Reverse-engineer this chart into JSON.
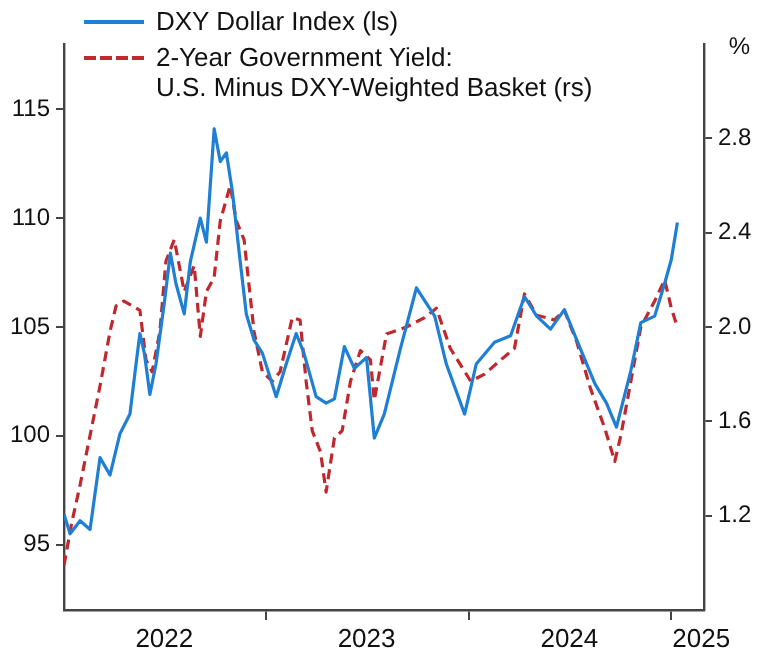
{
  "chart_data": {
    "type": "line",
    "xlim": [
      "2022-01-01",
      "2025-03-01"
    ],
    "xticks": [
      {
        "value": "2022-07-01",
        "label": "2022"
      },
      {
        "value": "2023-01-01",
        "label": null
      },
      {
        "value": "2023-07-01",
        "label": "2023"
      },
      {
        "value": "2024-01-01",
        "label": null
      },
      {
        "value": "2024-07-01",
        "label": "2024"
      },
      {
        "value": "2025-01-01",
        "label": null
      },
      {
        "value": "2025-02-24",
        "label": "2025"
      }
    ],
    "ylim": [
      92,
      118
    ],
    "yticks": [
      95,
      100,
      105,
      110,
      115
    ],
    "y2lim": [
      0.8,
      3.2
    ],
    "y2ticks": [
      1.2,
      1.6,
      {
        "value": 2,
        "label": "2.0"
      },
      2.4,
      2.8
    ],
    "y2label": "%",
    "legend": "top left",
    "grid": false,
    "marker": "none",
    "series": [
      {
        "name": "DXY Dollar Index (ls)",
        "color": "#1f7fd4",
        "line_style": "solid",
        "x": [
          "2022-01-01",
          "2022-01-12",
          "2022-01-30",
          "2022-02-17",
          "2022-03-07",
          "2022-03-25",
          "2022-04-12",
          "2022-04-30",
          "2022-05-11",
          "2022-05-18",
          "2022-05-26",
          "2022-06-05",
          "2022-06-16",
          "2022-07-01",
          "2022-07-12",
          "2022-07-22",
          "2022-08-06",
          "2022-08-17",
          "2022-09-04",
          "2022-09-15",
          "2022-09-29",
          "2022-10-10",
          "2022-10-21",
          "2022-11-01",
          "2022-11-15",
          "2022-11-26",
          "2022-12-10",
          "2022-12-25",
          "2023-01-19",
          "2023-02-06",
          "2023-02-24",
          "2023-03-10",
          "2023-04-01",
          "2023-04-19",
          "2023-05-04",
          "2023-05-22",
          "2023-06-09",
          "2023-07-01",
          "2023-07-15",
          "2023-08-02",
          "2023-08-31",
          "2023-09-29",
          "2023-11-01",
          "2023-11-22",
          "2023-12-25",
          "2024-01-15",
          "2024-02-17",
          "2024-03-17",
          "2024-04-11",
          "2024-05-03",
          "2024-05-28",
          "2024-06-22",
          "2024-07-21",
          "2024-08-16",
          "2024-09-06",
          "2024-09-24",
          "2024-10-20",
          "2024-11-07",
          "2024-12-02",
          "2024-12-20",
          "2025-01-01",
          "2025-01-12"
        ],
        "values": [
          96.4,
          95.5,
          96.1,
          95.7,
          99.0,
          98.2,
          100.1,
          101.0,
          103.3,
          104.7,
          103.8,
          101.9,
          103.3,
          106.1,
          108.4,
          107.0,
          105.6,
          108.0,
          110.0,
          108.9,
          114.1,
          112.6,
          113.0,
          111.2,
          108.0,
          105.6,
          104.4,
          103.8,
          101.8,
          103.3,
          104.7,
          103.8,
          101.8,
          101.5,
          101.7,
          104.1,
          103.1,
          103.6,
          99.9,
          101.0,
          104.0,
          106.8,
          105.5,
          103.3,
          101.0,
          103.3,
          104.3,
          104.6,
          106.4,
          105.5,
          104.9,
          105.8,
          104.0,
          102.4,
          101.5,
          100.4,
          103.0,
          105.2,
          105.5,
          107.0,
          108.1,
          109.8
        ]
      },
      {
        "name": "2-Year Government Yield:\nU.S. Minus DXY-Weighted Basket (rs)",
        "color": "#c0282d",
        "line_style": "dashed",
        "axis": "y2",
        "x": [
          "2022-01-01",
          "2022-01-15",
          "2022-01-30",
          "2022-02-17",
          "2022-03-07",
          "2022-03-25",
          "2022-04-05",
          "2022-04-19",
          "2022-05-04",
          "2022-05-18",
          "2022-05-29",
          "2022-06-09",
          "2022-06-23",
          "2022-07-04",
          "2022-07-19",
          "2022-08-06",
          "2022-08-24",
          "2022-09-04",
          "2022-09-15",
          "2022-09-29",
          "2022-10-10",
          "2022-10-28",
          "2022-11-08",
          "2022-11-22",
          "2022-12-10",
          "2022-12-25",
          "2023-01-12",
          "2023-01-26",
          "2023-02-17",
          "2023-03-03",
          "2023-03-14",
          "2023-03-25",
          "2023-04-09",
          "2023-04-19",
          "2023-05-04",
          "2023-05-18",
          "2023-06-02",
          "2023-06-20",
          "2023-07-08",
          "2023-07-15",
          "2023-08-06",
          "2023-09-11",
          "2023-10-14",
          "2023-11-04",
          "2023-11-29",
          "2024-01-05",
          "2024-01-30",
          "2024-02-28",
          "2024-03-24",
          "2024-04-11",
          "2024-05-03",
          "2024-06-04",
          "2024-06-22",
          "2024-07-14",
          "2024-08-08",
          "2024-09-03",
          "2024-09-21",
          "2024-10-02",
          "2024-10-20",
          "2024-11-07",
          "2024-12-02",
          "2024-12-20",
          "2025-01-01",
          "2025-01-12"
        ],
        "values": [
          0.99,
          1.17,
          1.33,
          1.54,
          1.75,
          1.98,
          2.09,
          2.11,
          2.09,
          2.07,
          1.86,
          1.81,
          1.98,
          2.28,
          2.37,
          2.15,
          2.26,
          1.96,
          2.15,
          2.21,
          2.45,
          2.6,
          2.45,
          2.37,
          1.98,
          1.81,
          1.77,
          1.81,
          2.04,
          2.03,
          1.77,
          1.56,
          1.47,
          1.3,
          1.53,
          1.56,
          1.77,
          1.9,
          1.86,
          1.69,
          1.97,
          2.0,
          2.04,
          2.08,
          1.91,
          1.77,
          1.8,
          1.86,
          1.91,
          2.14,
          2.05,
          2.03,
          2.07,
          1.94,
          1.74,
          1.57,
          1.43,
          1.54,
          1.77,
          2.0,
          2.11,
          2.2,
          2.08,
          2.0
        ]
      }
    ]
  }
}
